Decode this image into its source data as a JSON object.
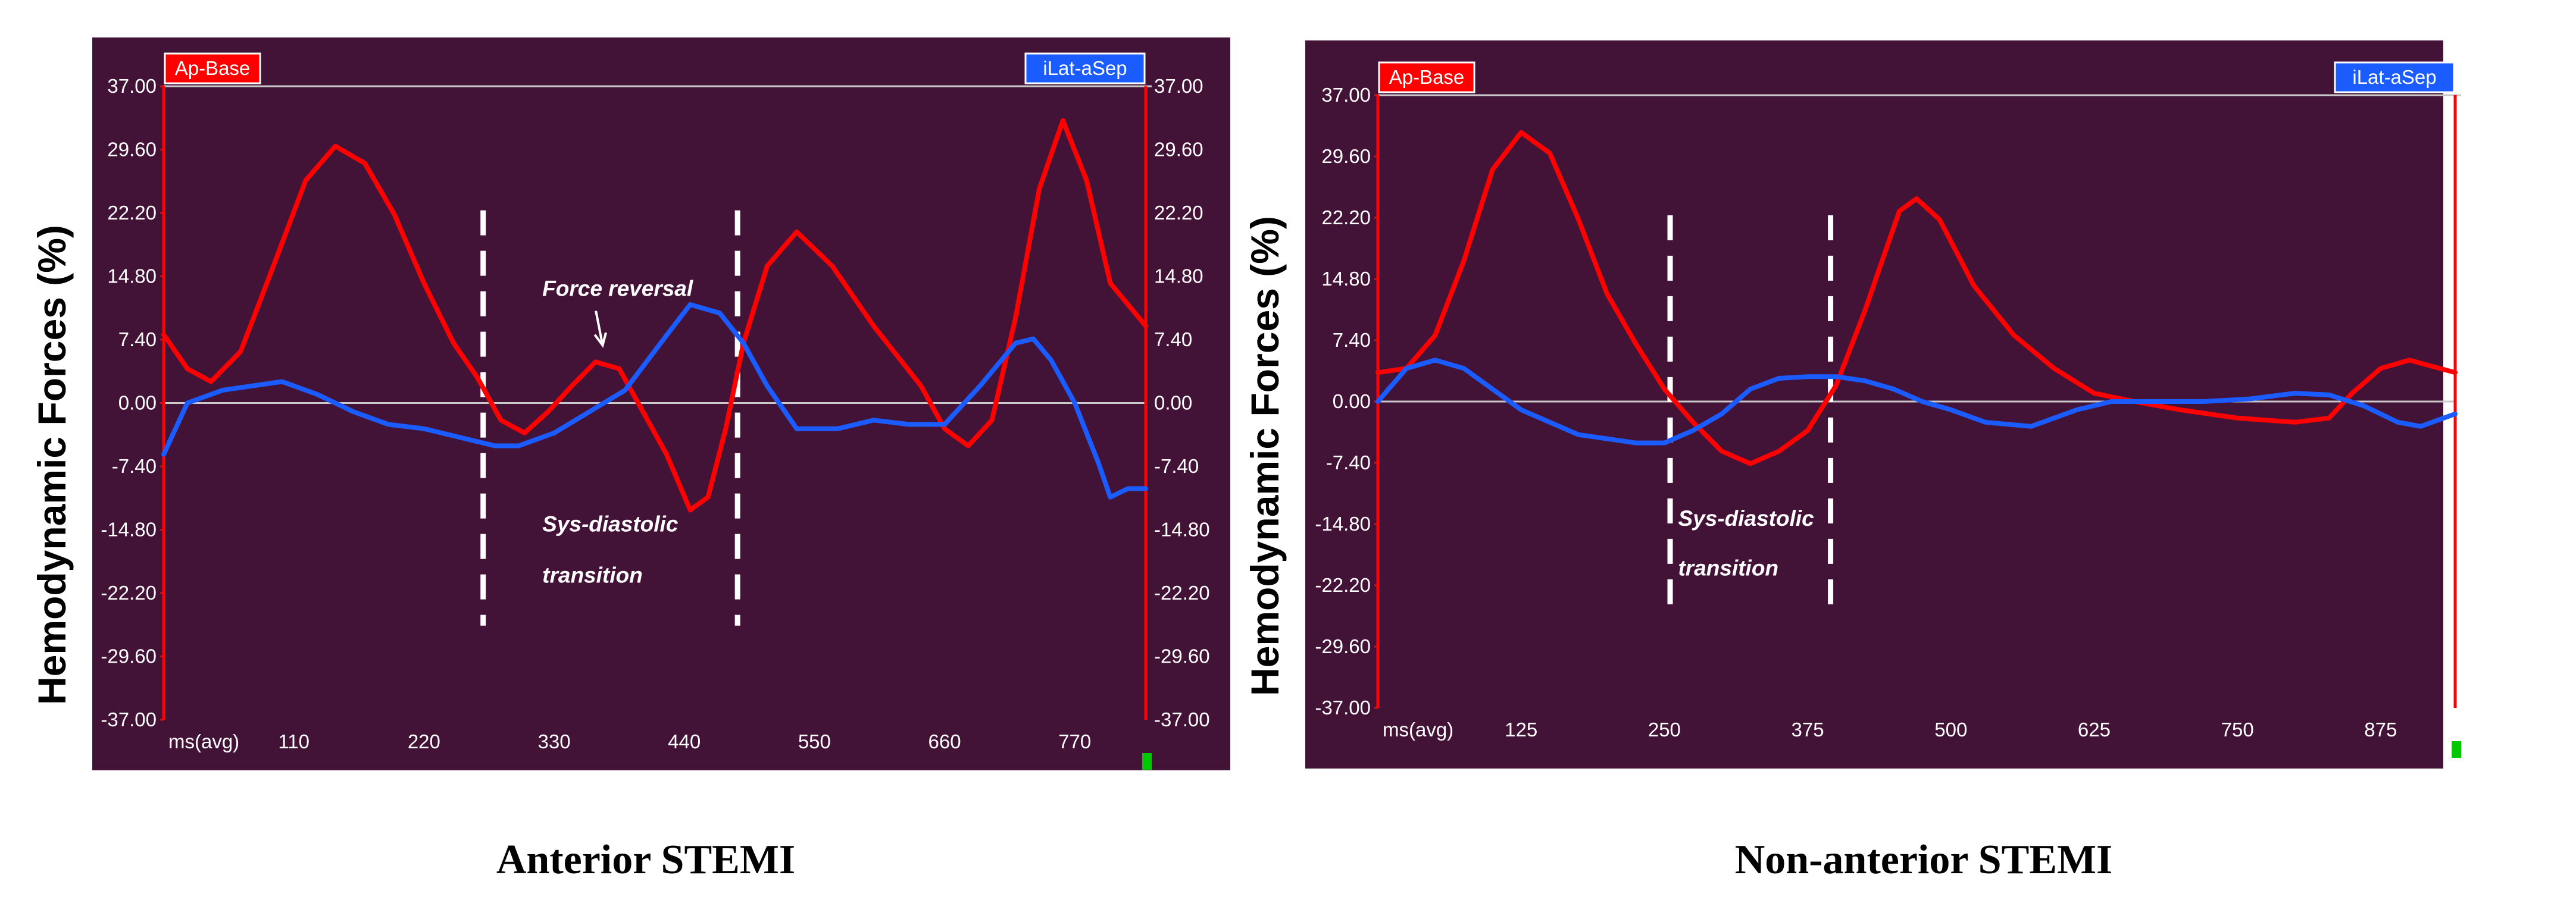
{
  "chart_data": [
    {
      "type": "line",
      "panel": "left",
      "caption": "Anterior STEMI",
      "ylabel": "Hemodynamic Forces  (%)",
      "ylim": [
        -37,
        37
      ],
      "yticks": [
        "37.00",
        "29.60",
        "22.20",
        "14.80",
        "7.40",
        "0.00",
        "-7.40",
        "-14.80",
        "-22.20",
        "-29.60",
        "-37.00"
      ],
      "yticks_right": [
        "37.00",
        "29.60",
        "22.20",
        "14.80",
        "7.40",
        "0.00",
        "-7.40",
        "-14.80",
        "-22.20",
        "-29.60",
        "-37.00"
      ],
      "xlim": [
        0,
        830
      ],
      "x_first_label": "ms(avg)",
      "xticks": [
        110,
        220,
        330,
        440,
        550,
        660,
        770
      ],
      "grid": false,
      "legend": [
        {
          "name": "Ap-Base",
          "color": "#ff0000",
          "position": "top-left"
        },
        {
          "name": "iLat-aSep",
          "color": "#1a5cff",
          "position": "top-right"
        }
      ],
      "vlines": [
        270,
        485
      ],
      "annotations": [
        {
          "text": "Force reversal",
          "x": 320,
          "y": 12.5,
          "arrow_to": [
            375,
            5.5
          ]
        },
        {
          "text": "Sys-diastolic",
          "x": 320,
          "y": -15
        },
        {
          "text": "transition",
          "x": 320,
          "y": -21
        }
      ],
      "series": [
        {
          "name": "Ap-Base",
          "color": "#ff0000",
          "points": [
            [
              0,
              8
            ],
            [
              20,
              4
            ],
            [
              40,
              2.5
            ],
            [
              65,
              6
            ],
            [
              90,
              15
            ],
            [
              120,
              26
            ],
            [
              145,
              30
            ],
            [
              170,
              28
            ],
            [
              195,
              22
            ],
            [
              220,
              14
            ],
            [
              245,
              7
            ],
            [
              265,
              3
            ],
            [
              285,
              -2
            ],
            [
              305,
              -3.5
            ],
            [
              325,
              -1
            ],
            [
              345,
              2
            ],
            [
              365,
              4.8
            ],
            [
              385,
              4
            ],
            [
              405,
              -1
            ],
            [
              425,
              -6
            ],
            [
              445,
              -12.5
            ],
            [
              460,
              -11
            ],
            [
              475,
              -3
            ],
            [
              490,
              7
            ],
            [
              510,
              16
            ],
            [
              535,
              20
            ],
            [
              565,
              16
            ],
            [
              600,
              9
            ],
            [
              640,
              2
            ],
            [
              660,
              -3
            ],
            [
              680,
              -5
            ],
            [
              700,
              -2
            ],
            [
              720,
              10
            ],
            [
              740,
              25
            ],
            [
              760,
              33
            ],
            [
              780,
              26
            ],
            [
              800,
              14
            ],
            [
              830,
              9
            ]
          ]
        },
        {
          "name": "iLat-aSep",
          "color": "#1a5cff",
          "points": [
            [
              0,
              -6
            ],
            [
              20,
              0
            ],
            [
              50,
              1.5
            ],
            [
              75,
              2
            ],
            [
              100,
              2.5
            ],
            [
              130,
              1
            ],
            [
              160,
              -1
            ],
            [
              190,
              -2.5
            ],
            [
              220,
              -3
            ],
            [
              250,
              -4
            ],
            [
              280,
              -5
            ],
            [
              300,
              -5
            ],
            [
              330,
              -3.5
            ],
            [
              360,
              -1
            ],
            [
              390,
              1.5
            ],
            [
              420,
              7
            ],
            [
              445,
              11.5
            ],
            [
              470,
              10.5
            ],
            [
              490,
              7
            ],
            [
              510,
              2
            ],
            [
              535,
              -3
            ],
            [
              570,
              -3
            ],
            [
              600,
              -2
            ],
            [
              630,
              -2.5
            ],
            [
              660,
              -2.5
            ],
            [
              690,
              2
            ],
            [
              720,
              7
            ],
            [
              735,
              7.5
            ],
            [
              750,
              5
            ],
            [
              770,
              0
            ],
            [
              790,
              -7
            ],
            [
              800,
              -11
            ],
            [
              815,
              -10
            ],
            [
              830,
              -10
            ]
          ]
        }
      ]
    },
    {
      "type": "line",
      "panel": "right",
      "caption": "Non-anterior STEMI",
      "ylabel": "Hemodynamic Forces  (%)",
      "ylim": [
        -37,
        37
      ],
      "yticks": [
        "37.00",
        "29.60",
        "22.20",
        "14.80",
        "7.40",
        "0.00",
        "-7.40",
        "-14.80",
        "-22.20",
        "-29.60",
        "-37.00"
      ],
      "yticks_right": [
        "37.00",
        "29.60",
        "22.20",
        "14.80",
        "7.40",
        "0.00",
        "-7.40",
        "-14.80",
        "-22.20",
        "-29.60",
        "-37.00"
      ],
      "xlim": [
        0,
        940
      ],
      "x_first_label": "ms(avg)",
      "xticks": [
        125,
        250,
        375,
        500,
        625,
        750,
        875
      ],
      "grid": false,
      "legend": [
        {
          "name": "Ap-Base",
          "color": "#ff0000",
          "position": "top-left"
        },
        {
          "name": "iLat-aSep",
          "color": "#1a5cff",
          "position": "top-right"
        }
      ],
      "vlines": [
        255,
        395
      ],
      "annotations": [
        {
          "text": "Sys-diastolic",
          "x": 262,
          "y": -15
        },
        {
          "text": "transition",
          "x": 262,
          "y": -21
        }
      ],
      "series": [
        {
          "name": "Ap-Base",
          "color": "#ff0000",
          "points": [
            [
              0,
              3.5
            ],
            [
              25,
              4
            ],
            [
              50,
              8
            ],
            [
              75,
              17
            ],
            [
              100,
              28
            ],
            [
              125,
              32.5
            ],
            [
              150,
              30
            ],
            [
              175,
              22
            ],
            [
              200,
              13
            ],
            [
              225,
              7
            ],
            [
              250,
              1.5
            ],
            [
              275,
              -2.5
            ],
            [
              300,
              -6
            ],
            [
              325,
              -7.5
            ],
            [
              350,
              -6
            ],
            [
              375,
              -3.5
            ],
            [
              400,
              2
            ],
            [
              425,
              11
            ],
            [
              455,
              23
            ],
            [
              470,
              24.5
            ],
            [
              490,
              22
            ],
            [
              520,
              14
            ],
            [
              555,
              8
            ],
            [
              590,
              4
            ],
            [
              625,
              1
            ],
            [
              660,
              0
            ],
            [
              700,
              -1
            ],
            [
              750,
              -2
            ],
            [
              800,
              -2.5
            ],
            [
              830,
              -2
            ],
            [
              850,
              1
            ],
            [
              875,
              4
            ],
            [
              900,
              5
            ],
            [
              940,
              3.5
            ]
          ]
        },
        {
          "name": "iLat-aSep",
          "color": "#1a5cff",
          "points": [
            [
              0,
              0
            ],
            [
              25,
              4
            ],
            [
              50,
              5
            ],
            [
              75,
              4
            ],
            [
              100,
              1.5
            ],
            [
              125,
              -1
            ],
            [
              150,
              -2.5
            ],
            [
              175,
              -4
            ],
            [
              200,
              -4.5
            ],
            [
              225,
              -5
            ],
            [
              250,
              -5
            ],
            [
              275,
              -3.5
            ],
            [
              300,
              -1.5
            ],
            [
              325,
              1.5
            ],
            [
              350,
              2.8
            ],
            [
              375,
              3
            ],
            [
              400,
              3
            ],
            [
              425,
              2.5
            ],
            [
              450,
              1.5
            ],
            [
              475,
              0
            ],
            [
              500,
              -1
            ],
            [
              530,
              -2.5
            ],
            [
              570,
              -3
            ],
            [
              610,
              -1
            ],
            [
              640,
              0
            ],
            [
              680,
              0
            ],
            [
              720,
              0
            ],
            [
              760,
              0.3
            ],
            [
              800,
              1
            ],
            [
              830,
              0.8
            ],
            [
              860,
              -0.5
            ],
            [
              890,
              -2.5
            ],
            [
              910,
              -3
            ],
            [
              930,
              -2
            ],
            [
              940,
              -1.5
            ]
          ]
        }
      ]
    }
  ]
}
